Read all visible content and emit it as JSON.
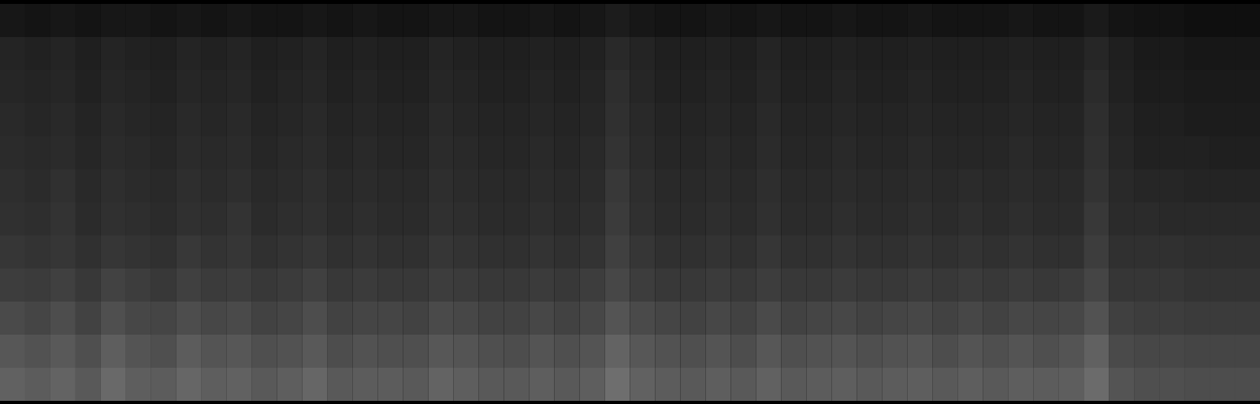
{
  "chart_data": {
    "type": "heatmap",
    "tick_labels": false,
    "zlim": [
      0,
      100
    ],
    "cells": [
      [
        9,
        8,
        9,
        8,
        9,
        9,
        8,
        9,
        8,
        9,
        8,
        8,
        9,
        8,
        9,
        8,
        8,
        9,
        9,
        8,
        8,
        9,
        8,
        9,
        11,
        9,
        8,
        8,
        9,
        8,
        9,
        8,
        8,
        9,
        8,
        8,
        9,
        8,
        8,
        8,
        9,
        8,
        8,
        10,
        8,
        7,
        7,
        6,
        6,
        6
      ],
      [
        14,
        13,
        14,
        12,
        14,
        13,
        12,
        14,
        13,
        14,
        12,
        13,
        14,
        12,
        13,
        12,
        12,
        14,
        13,
        12,
        12,
        13,
        12,
        13,
        16,
        14,
        12,
        12,
        13,
        12,
        14,
        12,
        12,
        13,
        12,
        12,
        13,
        12,
        12,
        12,
        13,
        12,
        12,
        15,
        12,
        10,
        10,
        9,
        9,
        9
      ],
      [
        15,
        14,
        15,
        13,
        15,
        14,
        13,
        15,
        14,
        15,
        13,
        14,
        15,
        13,
        14,
        13,
        13,
        15,
        14,
        13,
        13,
        14,
        13,
        14,
        18,
        15,
        13,
        13,
        14,
        13,
        15,
        13,
        13,
        14,
        13,
        13,
        14,
        13,
        13,
        13,
        14,
        13,
        13,
        17,
        13,
        11,
        11,
        10,
        10,
        10
      ],
      [
        16,
        15,
        16,
        14,
        16,
        15,
        14,
        16,
        15,
        16,
        14,
        15,
        16,
        14,
        15,
        14,
        14,
        16,
        15,
        14,
        14,
        15,
        14,
        15,
        19,
        16,
        14,
        14,
        15,
        14,
        16,
        14,
        14,
        15,
        14,
        14,
        15,
        14,
        14,
        14,
        15,
        14,
        14,
        18,
        14,
        12,
        12,
        11,
        11,
        11
      ],
      [
        17,
        16,
        17,
        15,
        17,
        16,
        15,
        17,
        16,
        17,
        15,
        16,
        17,
        15,
        16,
        15,
        15,
        17,
        16,
        15,
        15,
        16,
        15,
        16,
        20,
        17,
        15,
        15,
        16,
        15,
        17,
        15,
        15,
        16,
        15,
        15,
        16,
        15,
        15,
        15,
        16,
        15,
        15,
        19,
        15,
        13,
        13,
        13,
        12,
        12
      ],
      [
        18,
        17,
        19,
        16,
        18,
        17,
        16,
        18,
        17,
        18,
        16,
        17,
        18,
        16,
        17,
        16,
        16,
        18,
        17,
        16,
        16,
        17,
        16,
        17,
        22,
        18,
        16,
        16,
        17,
        16,
        18,
        16,
        16,
        17,
        16,
        16,
        17,
        16,
        17,
        16,
        17,
        16,
        16,
        20,
        16,
        15,
        15,
        14,
        14,
        14
      ],
      [
        19,
        18,
        20,
        17,
        19,
        18,
        17,
        19,
        18,
        20,
        17,
        18,
        19,
        17,
        18,
        17,
        17,
        19,
        18,
        17,
        17,
        18,
        17,
        18,
        23,
        19,
        17,
        17,
        18,
        17,
        19,
        17,
        17,
        18,
        17,
        17,
        18,
        17,
        18,
        17,
        18,
        17,
        17,
        22,
        17,
        17,
        16,
        16,
        16,
        16
      ],
      [
        21,
        20,
        21,
        19,
        21,
        20,
        19,
        22,
        20,
        21,
        19,
        20,
        21,
        19,
        20,
        19,
        19,
        21,
        20,
        19,
        19,
        20,
        19,
        20,
        25,
        21,
        19,
        19,
        20,
        19,
        21,
        19,
        19,
        20,
        19,
        19,
        20,
        19,
        20,
        19,
        20,
        19,
        19,
        24,
        19,
        19,
        19,
        18,
        18,
        18
      ],
      [
        24,
        23,
        25,
        22,
        26,
        24,
        22,
        25,
        23,
        24,
        22,
        23,
        25,
        22,
        23,
        22,
        22,
        24,
        23,
        22,
        22,
        23,
        22,
        24,
        28,
        24,
        22,
        22,
        23,
        22,
        24,
        22,
        22,
        23,
        22,
        22,
        23,
        22,
        23,
        22,
        23,
        22,
        23,
        27,
        21,
        21,
        21,
        20,
        20,
        20
      ],
      [
        29,
        27,
        30,
        26,
        31,
        28,
        27,
        30,
        28,
        29,
        26,
        27,
        30,
        26,
        27,
        27,
        26,
        29,
        28,
        26,
        26,
        28,
        26,
        28,
        33,
        29,
        27,
        26,
        28,
        26,
        29,
        26,
        27,
        28,
        26,
        27,
        28,
        26,
        28,
        26,
        28,
        27,
        28,
        32,
        25,
        24,
        24,
        23,
        23,
        23
      ],
      [
        34,
        32,
        35,
        31,
        37,
        33,
        31,
        36,
        33,
        34,
        31,
        32,
        35,
        30,
        32,
        31,
        31,
        34,
        33,
        31,
        30,
        33,
        31,
        33,
        39,
        34,
        32,
        31,
        33,
        30,
        34,
        31,
        32,
        33,
        31,
        32,
        33,
        30,
        33,
        31,
        33,
        31,
        33,
        38,
        29,
        28,
        28,
        27,
        27,
        27
      ],
      [
        38,
        36,
        39,
        35,
        41,
        37,
        36,
        40,
        37,
        38,
        35,
        37,
        40,
        35,
        36,
        36,
        35,
        39,
        37,
        35,
        35,
        37,
        35,
        37,
        43,
        38,
        36,
        35,
        37,
        35,
        38,
        35,
        36,
        37,
        35,
        36,
        37,
        35,
        37,
        35,
        37,
        36,
        37,
        42,
        33,
        31,
        31,
        30,
        30,
        30
      ]
    ]
  }
}
